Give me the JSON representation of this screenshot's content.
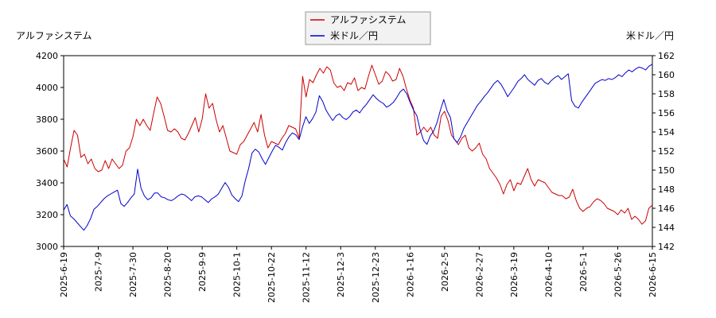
{
  "chart_data": {
    "type": "line",
    "left_axis_label": "アルファシステム",
    "right_axis_label": "米ドル／円",
    "legend_position": "top-center",
    "grid": false,
    "y_left": {
      "min": 3000,
      "max": 4200,
      "ticks": [
        "3000",
        "3200",
        "3400",
        "3600",
        "3800",
        "4000",
        "4200"
      ]
    },
    "y_right": {
      "min": 142,
      "max": 162,
      "ticks": [
        "142",
        "144",
        "146",
        "148",
        "150",
        "152",
        "154",
        "156",
        "158",
        "160",
        "162"
      ]
    },
    "x_ticks": [
      "2025-6-19",
      "2025-7-9",
      "2025-7-30",
      "2025-8-20",
      "2025-9-9",
      "2025-10-1",
      "2025-10-22",
      "2025-11-12",
      "2025-12-3",
      "2025-12-23",
      "2026-1-16",
      "2026-2-5",
      "2026-2-27",
      "2026-3-19",
      "2026-4-10",
      "2026-5-1",
      "2026-5-26",
      "2026-6-15"
    ],
    "series": [
      {
        "name": "アルファシステム",
        "axis": "left",
        "color": "#cc0000",
        "values": [
          3550,
          3500,
          3620,
          3730,
          3700,
          3560,
          3580,
          3520,
          3550,
          3490,
          3470,
          3480,
          3540,
          3490,
          3550,
          3520,
          3490,
          3510,
          3600,
          3620,
          3690,
          3800,
          3760,
          3800,
          3760,
          3730,
          3840,
          3940,
          3900,
          3820,
          3730,
          3720,
          3740,
          3720,
          3680,
          3670,
          3710,
          3760,
          3810,
          3720,
          3800,
          3960,
          3870,
          3900,
          3800,
          3720,
          3760,
          3680,
          3600,
          3590,
          3580,
          3640,
          3660,
          3700,
          3740,
          3780,
          3720,
          3830,
          3700,
          3620,
          3660,
          3650,
          3640,
          3680,
          3710,
          3760,
          3750,
          3740,
          3680,
          4070,
          3940,
          4050,
          4030,
          4080,
          4120,
          4090,
          4130,
          4110,
          4030,
          4000,
          4010,
          3980,
          4030,
          4020,
          4060,
          3980,
          4000,
          3990,
          4070,
          4140,
          4080,
          4020,
          4040,
          4100,
          4080,
          4040,
          4050,
          4120,
          4070,
          3990,
          3920,
          3870,
          3700,
          3720,
          3750,
          3720,
          3750,
          3700,
          3680,
          3820,
          3850,
          3790,
          3700,
          3670,
          3640,
          3680,
          3700,
          3620,
          3600,
          3620,
          3650,
          3580,
          3550,
          3490,
          3460,
          3430,
          3390,
          3330,
          3390,
          3420,
          3350,
          3400,
          3390,
          3440,
          3490,
          3420,
          3380,
          3420,
          3410,
          3400,
          3370,
          3340,
          3330,
          3320,
          3320,
          3300,
          3310,
          3360,
          3290,
          3240,
          3220,
          3240,
          3250,
          3280,
          3300,
          3290,
          3270,
          3240,
          3230,
          3220,
          3200,
          3230,
          3210,
          3240,
          3170,
          3190,
          3170,
          3140,
          3160,
          3240,
          3260
        ]
      },
      {
        "name": "米ドル／円",
        "axis": "right",
        "color": "#0000cc",
        "values": [
          145.8,
          146.4,
          145.2,
          144.9,
          144.5,
          144.1,
          143.7,
          144.2,
          144.9,
          145.9,
          146.2,
          146.6,
          147.0,
          147.3,
          147.5,
          147.7,
          147.9,
          146.5,
          146.2,
          146.6,
          147.1,
          147.5,
          150.1,
          148.1,
          147.3,
          146.9,
          147.1,
          147.6,
          147.6,
          147.2,
          147.1,
          146.9,
          146.8,
          147.0,
          147.3,
          147.5,
          147.4,
          147.1,
          146.8,
          147.2,
          147.3,
          147.2,
          146.9,
          146.6,
          147.0,
          147.2,
          147.5,
          148.1,
          148.7,
          148.2,
          147.4,
          147.0,
          146.7,
          147.3,
          148.9,
          150.2,
          151.8,
          152.2,
          151.9,
          151.2,
          150.6,
          151.3,
          152.0,
          152.6,
          152.4,
          152.1,
          152.9,
          153.5,
          153.9,
          153.7,
          153.2,
          154.5,
          155.6,
          154.9,
          155.4,
          156.1,
          157.8,
          157.2,
          156.3,
          155.7,
          155.2,
          155.7,
          155.9,
          155.5,
          155.3,
          155.6,
          156.1,
          156.3,
          156.0,
          156.5,
          156.9,
          157.4,
          157.9,
          157.5,
          157.2,
          157.0,
          156.6,
          156.8,
          157.1,
          157.6,
          158.2,
          158.5,
          158.0,
          157.1,
          156.3,
          155.7,
          154.2,
          153.1,
          152.7,
          153.6,
          154.1,
          155.0,
          156.3,
          157.4,
          156.2,
          155.5,
          153.3,
          152.9,
          153.5,
          154.4,
          155.0,
          155.6,
          156.2,
          156.8,
          157.2,
          157.7,
          158.1,
          158.6,
          159.1,
          159.4,
          159.0,
          158.4,
          157.7,
          158.2,
          158.7,
          159.3,
          159.6,
          160.0,
          159.5,
          159.2,
          158.9,
          159.4,
          159.6,
          159.2,
          159.0,
          159.4,
          159.7,
          159.9,
          159.5,
          159.8,
          160.1,
          157.3,
          156.7,
          156.5,
          157.1,
          157.6,
          158.1,
          158.6,
          159.1,
          159.3,
          159.5,
          159.4,
          159.6,
          159.5,
          159.7,
          160.0,
          159.8,
          160.2,
          160.5,
          160.3,
          160.6,
          160.8,
          160.7,
          160.5,
          160.9,
          161.1
        ]
      }
    ]
  }
}
